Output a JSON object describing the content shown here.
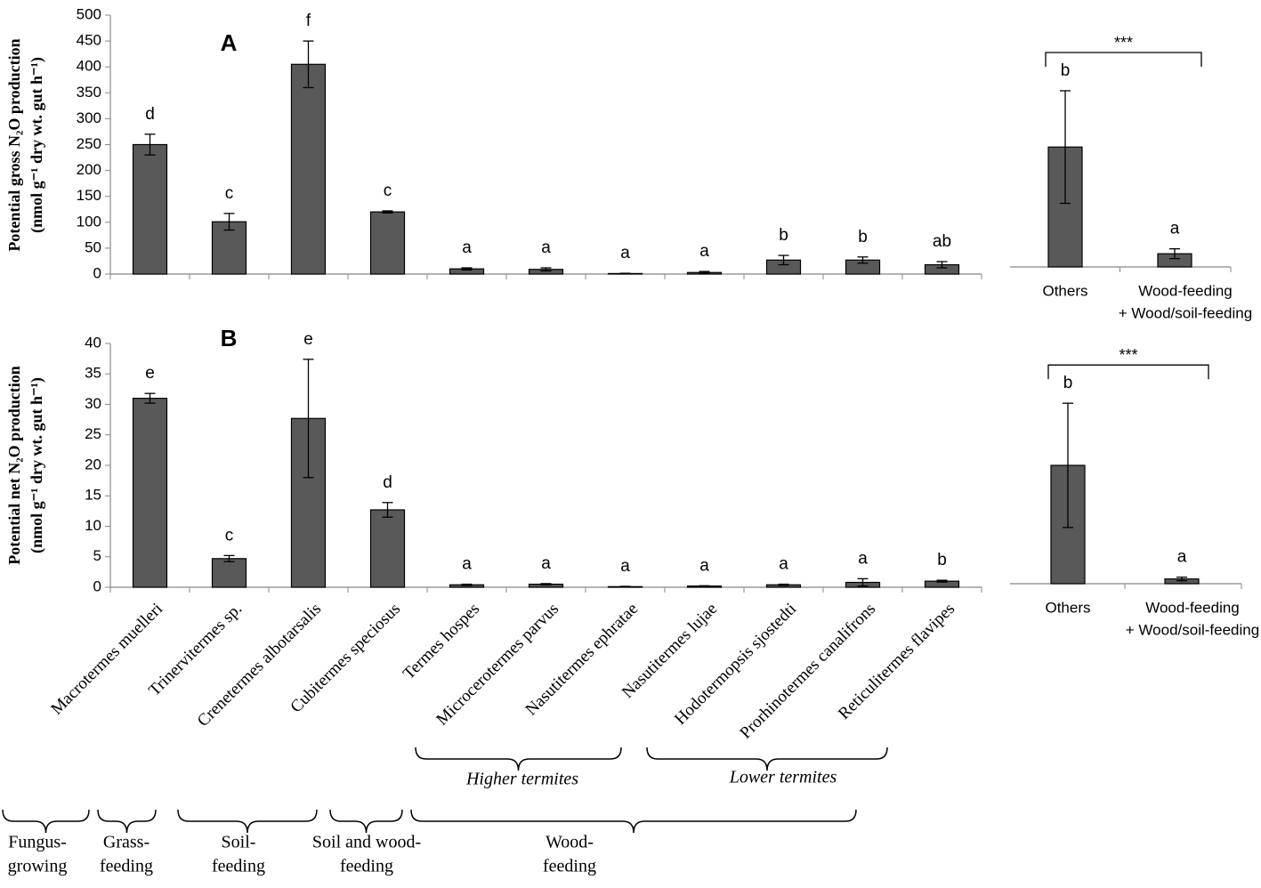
{
  "chart_data": [
    {
      "type": "bar",
      "panel": "A",
      "ylabel": [
        "Potential gross N₂O production",
        "(nmol g⁻¹ dry wt. gut h⁻¹)"
      ],
      "ylim": [
        0,
        500
      ],
      "yticks": [
        0,
        50,
        100,
        150,
        200,
        250,
        300,
        350,
        400,
        450,
        500
      ],
      "color": "#595959",
      "values": [
        250,
        101,
        405,
        120,
        10,
        9,
        1,
        3,
        27,
        27,
        18
      ],
      "errors": [
        20,
        16,
        45,
        2,
        2,
        3,
        0.5,
        2,
        9,
        6,
        6
      ],
      "annotations": [
        "d",
        "c",
        "f",
        "c",
        "a",
        "a",
        "a",
        "a",
        "b",
        "b",
        "ab"
      ]
    },
    {
      "type": "bar",
      "categories": [
        "Others",
        [
          "Wood-feeding",
          "+ Wood/soil-feeding"
        ]
      ],
      "ylim": [
        0,
        500
      ],
      "color": "#595959",
      "values": [
        245,
        27
      ],
      "errors": [
        115,
        10
      ],
      "annotations": [
        "b",
        "a"
      ],
      "significance": "***"
    },
    {
      "type": "bar",
      "panel": "B",
      "ylabel": [
        "Potential net N₂O production",
        "(nmol g⁻¹ dry wt. gut h⁻¹)"
      ],
      "ylim": [
        0,
        40
      ],
      "yticks": [
        0,
        5,
        10,
        15,
        20,
        25,
        30,
        35,
        40
      ],
      "color": "#595959",
      "categories": [
        "Macrotermes muelleri",
        "Trinervitermes sp.",
        "Crenetermes albotarsalis",
        "Cubitermes speciosus",
        "Termes hospes",
        "Microcerotermes parvus",
        "Nasutitermes ephratae",
        "Nasutitermes lujae",
        "Hodotermopsis sjostedti",
        "Prorhinotermes canalifrons",
        "Reticulitermes flavipes"
      ],
      "values": [
        31,
        4.7,
        27.7,
        12.7,
        0.4,
        0.5,
        0.1,
        0.2,
        0.4,
        0.8,
        1.0
      ],
      "errors": [
        0.8,
        0.5,
        9.7,
        1.2,
        0.1,
        0.1,
        0.05,
        0.05,
        0.1,
        0.6,
        0.15
      ],
      "annotations": [
        "e",
        "c",
        "e",
        "d",
        "a",
        "a",
        "a",
        "a",
        "a",
        "a",
        "b"
      ]
    },
    {
      "type": "bar",
      "categories": [
        "Others",
        [
          "Wood-feeding",
          "+ Wood/soil-feeding"
        ]
      ],
      "ylim": [
        0,
        40
      ],
      "color": "#595959",
      "values": [
        20,
        0.8
      ],
      "errors": [
        10.5,
        0.3
      ],
      "annotations": [
        "b",
        "a"
      ],
      "significance": "***"
    }
  ],
  "taxon_groups": [
    "Higher termites",
    "Lower termites"
  ],
  "feeding_groups": [
    [
      "Fungus-",
      "growing"
    ],
    [
      "Grass-",
      "feeding"
    ],
    [
      "Soil-",
      "feeding"
    ],
    [
      "Soil and wood-",
      "feeding"
    ],
    [
      "Wood-",
      "feeding"
    ]
  ]
}
